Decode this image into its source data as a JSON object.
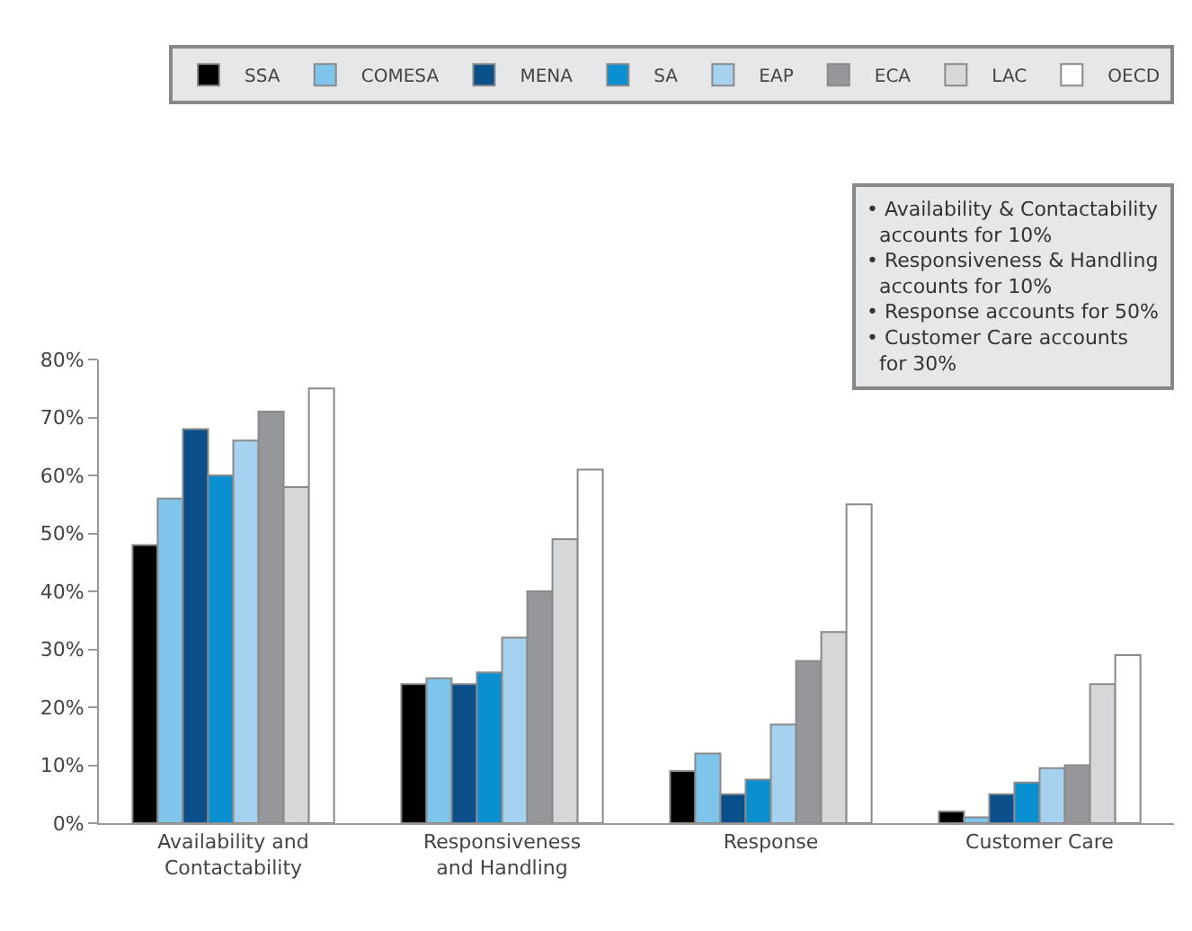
{
  "chart_data": {
    "type": "bar",
    "categories": [
      "Availability and\nContactability",
      "Responsiveness\nand Handling",
      "Response",
      "Customer Care"
    ],
    "series": [
      {
        "name": "SSA",
        "color": "#000000",
        "values": [
          48,
          24,
          9,
          2
        ]
      },
      {
        "name": "COMESA",
        "color": "#7fc4ea",
        "values": [
          56,
          25,
          12,
          1
        ]
      },
      {
        "name": "MENA",
        "color": "#0b4f8a",
        "values": [
          68,
          24,
          5,
          5
        ]
      },
      {
        "name": "SA",
        "color": "#0a8fd0",
        "values": [
          60,
          26,
          7.5,
          7
        ]
      },
      {
        "name": "EAP",
        "color": "#a6d2f0",
        "values": [
          66,
          32,
          17,
          9.5
        ]
      },
      {
        "name": "ECA",
        "color": "#96979b",
        "values": [
          71,
          40,
          28,
          10
        ]
      },
      {
        "name": "LAC",
        "color": "#d6d7d9",
        "values": [
          58,
          49,
          33,
          24
        ]
      },
      {
        "name": "OECD",
        "color": "#ffffff",
        "values": [
          75,
          61,
          55,
          29
        ]
      }
    ],
    "ylim": [
      0,
      80
    ],
    "yticks": [
      {
        "value": 0,
        "label": "0%"
      },
      {
        "value": 10,
        "label": "10%"
      },
      {
        "value": 20,
        "label": "20%"
      },
      {
        "value": 30,
        "label": "30%"
      },
      {
        "value": 40,
        "label": "40%"
      },
      {
        "value": 50,
        "label": "50%"
      },
      {
        "value": 60,
        "label": "60%"
      },
      {
        "value": 70,
        "label": "70%"
      },
      {
        "value": 80,
        "label": "80%"
      }
    ],
    "annotations": [
      "• Availability & Contactability\n  accounts for 10%\n• Responsiveness & Handling\n  accounts for 10%\n• Response accounts for 50%\n• Customer Care accounts\n  for 30%"
    ],
    "legend": "top"
  }
}
